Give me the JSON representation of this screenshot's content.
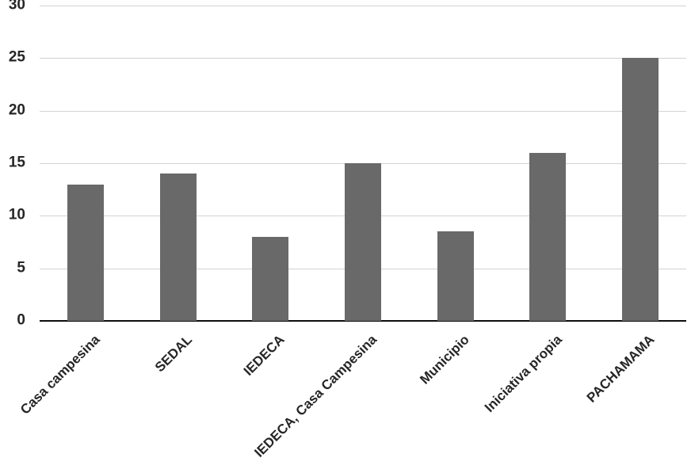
{
  "chart_data": {
    "type": "bar",
    "title": "",
    "subtitle": "",
    "xlabel": "",
    "ylabel": "",
    "categories": [
      "Casa campesina",
      "SEDAL",
      "IEDECA",
      "IEDECA, Casa Campesina",
      "Municipio",
      "Iniciativa propia",
      "PACHAMAMA"
    ],
    "values": [
      13,
      14,
      8,
      15,
      8.5,
      16,
      25
    ],
    "ylim": [
      0,
      30
    ],
    "yticks": [
      0,
      5,
      10,
      15,
      20,
      25,
      30
    ],
    "grid": true,
    "legend": false,
    "legend_position": "none",
    "colors": {
      "bar": "#696969",
      "gridline": "#d3d3d3",
      "axis_line": "#0d0d0d",
      "tick_label": "#262626",
      "background": "#ffffff"
    }
  }
}
